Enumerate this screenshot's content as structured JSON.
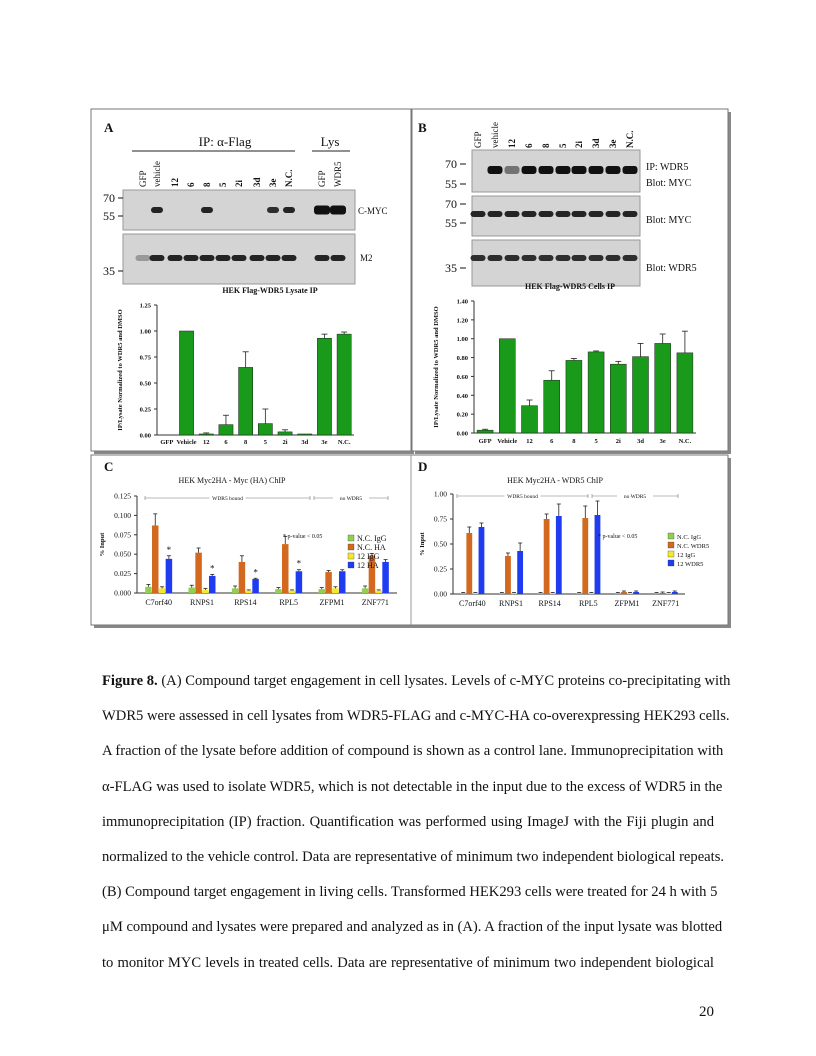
{
  "figure": {
    "panel_labels": [
      "A",
      "B",
      "C",
      "D"
    ],
    "panel_a": {
      "ip_label": "IP: α-Flag",
      "lys_label": "Lys",
      "lanes": [
        "GFP",
        "vehicle",
        "12",
        "6",
        "8",
        "5",
        "2i",
        "3d",
        "3e",
        "N.C.",
        "GFP",
        "WDR5"
      ],
      "markers": [
        "70",
        "55",
        "35"
      ],
      "blot_labels": [
        "C-MYC",
        "M2"
      ]
    },
    "panel_b": {
      "lanes": [
        "GFP",
        "vehicle",
        "12",
        "6",
        "8",
        "5",
        "2i",
        "3d",
        "3e",
        "N.C."
      ],
      "markers": [
        "70",
        "55",
        "70",
        "55",
        "35"
      ],
      "blot_labels": [
        "IP: WDR5",
        "Blot: MYC",
        "Blot: MYC",
        "Blot: WDR5"
      ]
    }
  },
  "chart_data": [
    {
      "type": "bar",
      "title": "HEK Flag-WDR5 Lysate IP",
      "ylabel": "IP/Lysate Normalized to WDR5 and DMSO",
      "color": "#1a9a1a",
      "categories": [
        "GFP",
        "Vehicle",
        "12",
        "6",
        "8",
        "5",
        "2i",
        "3d",
        "3e",
        "N.C."
      ],
      "values": [
        0,
        1.0,
        0.01,
        0.1,
        0.65,
        0.11,
        0.03,
        0.01,
        0.93,
        0.97
      ],
      "errors": [
        0,
        0,
        0.01,
        0.09,
        0.15,
        0.14,
        0.02,
        0,
        0.04,
        0.02
      ],
      "ylim": [
        0,
        1.25
      ],
      "yticks": [
        {
          "value": 0,
          "label": "0.00"
        },
        {
          "value": 0.25,
          "label": "0.25"
        },
        {
          "value": 0.5,
          "label": "0.50"
        },
        {
          "value": 0.75,
          "label": "0.75"
        },
        {
          "value": 1,
          "label": "1.00"
        },
        {
          "value": 1.25,
          "label": "1.25"
        }
      ]
    },
    {
      "type": "bar",
      "title": "HEK Flag-WDR5 Cells IP",
      "ylabel": "IP/Lysate Normalized to WDR5 and DMSO",
      "color": "#1a9a1a",
      "categories": [
        "GFP",
        "Vehicle",
        "12",
        "6",
        "8",
        "5",
        "2i",
        "3d",
        "3e",
        "N.C."
      ],
      "values": [
        0.03,
        1.0,
        0.29,
        0.56,
        0.77,
        0.86,
        0.73,
        0.81,
        0.95,
        0.85
      ],
      "errors": [
        0.01,
        0,
        0.06,
        0.1,
        0.02,
        0.01,
        0.03,
        0.14,
        0.1,
        0.23
      ],
      "ylim": [
        0,
        1.4
      ],
      "yticks": [
        {
          "value": 0,
          "label": "0.00"
        },
        {
          "value": 0.2,
          "label": "0.20"
        },
        {
          "value": 0.4,
          "label": "0.40"
        },
        {
          "value": 0.6,
          "label": "0.60"
        },
        {
          "value": 0.8,
          "label": "0.80"
        },
        {
          "value": 1,
          "label": "1.00"
        },
        {
          "value": 1.2,
          "label": "1.20"
        },
        {
          "value": 1.4,
          "label": "1.40"
        }
      ]
    },
    {
      "type": "grouped_bar",
      "title": "HEK Myc2HA - Myc (HA) ChIP",
      "ylabel": "% Input",
      "annotation": "* p-value < 0.05",
      "region_labels": [
        "WDR5 bound",
        "no WDR5"
      ],
      "categories": [
        "C7orf40",
        "RNPS1",
        "RPS14",
        "RPL5",
        "ZFPM1",
        "ZNF771"
      ],
      "series": [
        {
          "name": "N.C. IgG",
          "color": "#8fd14f",
          "values": [
            0.008,
            0.007,
            0.006,
            0.005,
            0.005,
            0.006
          ],
          "errors": [
            0.003,
            0.003,
            0.003,
            0.002,
            0.002,
            0.003
          ]
        },
        {
          "name": "N.C. HA",
          "color": "#d2691e",
          "values": [
            0.087,
            0.052,
            0.04,
            0.063,
            0.027,
            0.048
          ],
          "errors": [
            0.015,
            0.006,
            0.008,
            0.01,
            0.002,
            0.003
          ]
        },
        {
          "name": "12 IgG",
          "color": "#f5e72a",
          "values": [
            0.006,
            0.004,
            0.003,
            0.003,
            0.006,
            0.003
          ],
          "errors": [
            0.002,
            0.002,
            0.001,
            0.001,
            0.002,
            0.001
          ]
        },
        {
          "name": "12 HA",
          "color": "#1f3cf0",
          "values": [
            0.044,
            0.022,
            0.018,
            0.028,
            0.028,
            0.04
          ],
          "errors": [
            0.004,
            0.002,
            0.001,
            0.002,
            0.002,
            0.003
          ],
          "markers": [
            "*",
            "*",
            "*",
            "*",
            null,
            null
          ]
        }
      ],
      "ylim": [
        0,
        0.125
      ],
      "yticks": [
        {
          "value": 0,
          "label": "0.000"
        },
        {
          "value": 0.025,
          "label": "0.025"
        },
        {
          "value": 0.05,
          "label": "0.050"
        },
        {
          "value": 0.075,
          "label": "0.075"
        },
        {
          "value": 0.1,
          "label": "0.100"
        },
        {
          "value": 0.125,
          "label": "0.125"
        }
      ]
    },
    {
      "type": "grouped_bar",
      "title": "HEK Myc2HA - WDR5 ChIP",
      "ylabel": "% Input",
      "annotation": "* p-value < 0.05",
      "region_labels": [
        "WDR5 bound",
        "no WDR5"
      ],
      "categories": [
        "C7orf40",
        "RNPS1",
        "RPS14",
        "RPL5",
        "ZFPM1",
        "ZNF771"
      ],
      "series": [
        {
          "name": "N.C. IgG",
          "color": "#8fd14f",
          "values": [
            0.01,
            0.01,
            0.01,
            0.01,
            0.01,
            0.01
          ],
          "errors": [
            0.005,
            0.005,
            0.005,
            0.005,
            0.005,
            0.005
          ]
        },
        {
          "name": "N.C. WDR5",
          "color": "#d2691e",
          "values": [
            0.61,
            0.38,
            0.75,
            0.76,
            0.02,
            0.01
          ],
          "errors": [
            0.06,
            0.03,
            0.05,
            0.12,
            0.01,
            0.01
          ]
        },
        {
          "name": "12 IgG",
          "color": "#f5e72a",
          "values": [
            0.01,
            0.01,
            0.01,
            0.01,
            0.01,
            0.01
          ],
          "errors": [
            0.005,
            0.005,
            0.005,
            0.005,
            0.005,
            0.005
          ]
        },
        {
          "name": "12 WDR5",
          "color": "#1f3cf0",
          "values": [
            0.67,
            0.43,
            0.78,
            0.79,
            0.02,
            0.02
          ],
          "errors": [
            0.04,
            0.08,
            0.12,
            0.14,
            0.01,
            0.01
          ]
        }
      ],
      "ylim": [
        0,
        1
      ],
      "yticks": [
        {
          "value": 0,
          "label": "0.00"
        },
        {
          "value": 0.25,
          "label": "0.25"
        },
        {
          "value": 0.5,
          "label": "0.50"
        },
        {
          "value": 0.75,
          "label": "0.75"
        },
        {
          "value": 1,
          "label": "1.00"
        }
      ]
    }
  ],
  "caption": {
    "label": "Figure 8.",
    "lines": [
      " (A) Compound target engagement in cell lysates. Levels of c-MYC proteins co-precipitating with",
      "WDR5 were assessed in cell lysates from WDR5-FLAG and c-MYC-HA co-overexpressing HEK293 cells.",
      "A fraction of the lysate before addition of compound is shown as a control lane. Immunoprecipitation with",
      "α-FLAG was used to isolate WDR5, which is not detectable in the input due to the excess of WDR5 in the",
      "immunoprecipitation (IP) fraction. Quantification was performed using ImageJ with the Fiji plugin and",
      "normalized to the vehicle control. Data are representative of minimum two independent biological repeats.",
      "(B) Compound target engagement in living cells. Transformed HEK293 cells were treated for 24 h with 5",
      "μM compound and lysates were prepared and analyzed as in (A). A fraction of the input lysate was blotted",
      "to monitor MYC levels in treated cells. Data are representative of minimum two independent biological"
    ]
  },
  "page_number": "20"
}
